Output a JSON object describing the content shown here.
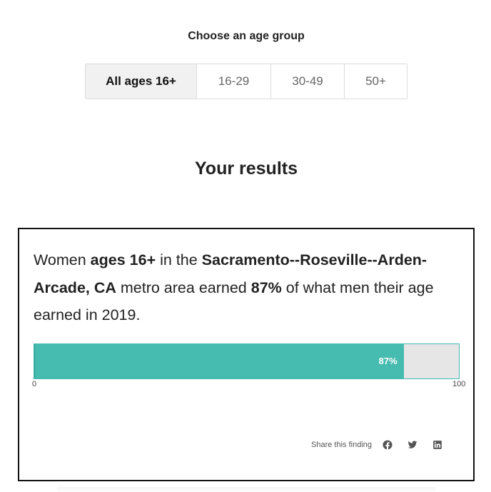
{
  "age_selector": {
    "heading": "Choose an age group",
    "options": [
      {
        "label": "All ages 16+",
        "selected": true
      },
      {
        "label": "16-29",
        "selected": false
      },
      {
        "label": "30-49",
        "selected": false
      },
      {
        "label": "50+",
        "selected": false
      }
    ]
  },
  "results": {
    "heading": "Your results",
    "finding": {
      "p1": "Women ",
      "age": "ages 16+",
      "p2": " in the ",
      "metro": "Sacramento--Roseville--Arden-Arcade, CA",
      "p3": " metro area earned ",
      "percent": "87%",
      "p4": " of what men their age earned in 2019."
    },
    "bar": {
      "value": 87,
      "value_label": "87%",
      "min_label": "0",
      "max_label": "100",
      "fill_color": "#46bbaf",
      "track_color": "#e6e6e6"
    },
    "share": {
      "label": "Share this finding",
      "icons": [
        "facebook-icon",
        "twitter-icon",
        "linkedin-icon"
      ]
    }
  }
}
